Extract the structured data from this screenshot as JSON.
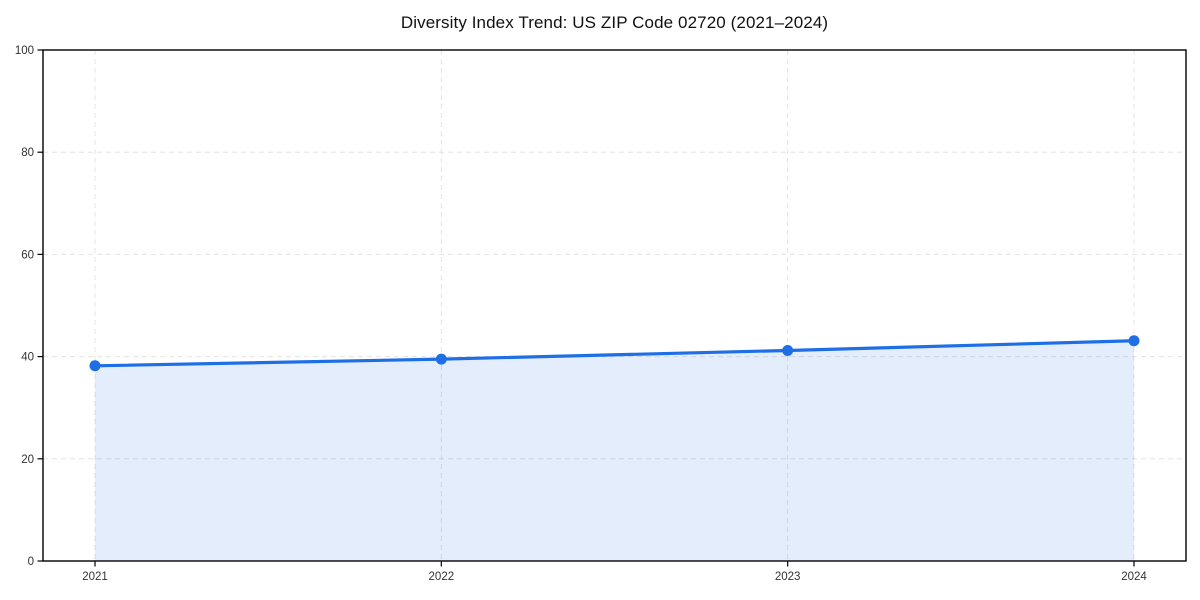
{
  "page": {
    "background": "#ffffff"
  },
  "chart_data": {
    "type": "line",
    "title": "Diversity Index Trend: US ZIP Code 02720 (2021–2024)",
    "categories": [
      "2021",
      "2022",
      "2023",
      "2024"
    ],
    "series": [
      {
        "name": "Diversity Index",
        "values": [
          38.2,
          39.5,
          41.2,
          43.1
        ]
      }
    ],
    "xlabel": "",
    "ylabel": "",
    "ylim": [
      0,
      100
    ],
    "yticks": [
      0,
      20,
      40,
      60,
      80,
      100
    ],
    "grid": true,
    "grid_style": "dashed",
    "area_fill": true,
    "markers": true,
    "legend_position": "none",
    "colors": {
      "line": "#1e6ee6",
      "marker": "#1e6ee6",
      "area": "rgba(30, 110, 230, 0.12)",
      "grid": "#e4e4e4",
      "axis": "#000000",
      "title_text": "#111111",
      "tick_text": "#333333"
    }
  }
}
